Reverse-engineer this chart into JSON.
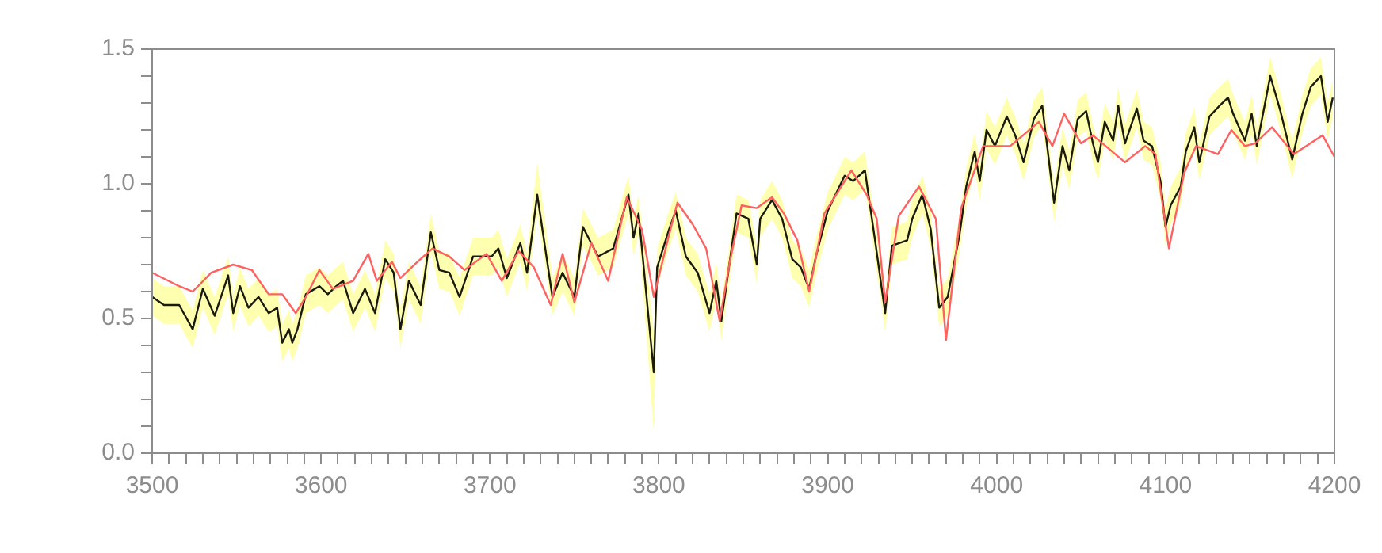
{
  "chart_data": {
    "type": "line",
    "marker": "none",
    "line_style": "solid",
    "xlim": [
      3500,
      4200
    ],
    "ylim": [
      0,
      1.5
    ],
    "xticks": [
      3500,
      {
        "value": 3510,
        "label": null
      },
      {
        "value": 3520,
        "label": null
      },
      {
        "value": 3530,
        "label": null
      },
      {
        "value": 3540,
        "label": null
      },
      {
        "value": 3550,
        "label": null
      },
      {
        "value": 3560,
        "label": null
      },
      {
        "value": 3570,
        "label": null
      },
      {
        "value": 3580,
        "label": null
      },
      {
        "value": 3590,
        "label": null
      },
      3600,
      {
        "value": 3610,
        "label": null
      },
      {
        "value": 3620,
        "label": null
      },
      {
        "value": 3630,
        "label": null
      },
      {
        "value": 3640,
        "label": null
      },
      {
        "value": 3650,
        "label": null
      },
      {
        "value": 3660,
        "label": null
      },
      {
        "value": 3670,
        "label": null
      },
      {
        "value": 3680,
        "label": null
      },
      {
        "value": 3690,
        "label": null
      },
      3700,
      {
        "value": 3710,
        "label": null
      },
      {
        "value": 3720,
        "label": null
      },
      {
        "value": 3730,
        "label": null
      },
      {
        "value": 3740,
        "label": null
      },
      {
        "value": 3750,
        "label": null
      },
      {
        "value": 3760,
        "label": null
      },
      {
        "value": 3770,
        "label": null
      },
      {
        "value": 3780,
        "label": null
      },
      {
        "value": 3790,
        "label": null
      },
      3800,
      {
        "value": 3810,
        "label": null
      },
      {
        "value": 3820,
        "label": null
      },
      {
        "value": 3830,
        "label": null
      },
      {
        "value": 3840,
        "label": null
      },
      {
        "value": 3850,
        "label": null
      },
      {
        "value": 3860,
        "label": null
      },
      {
        "value": 3870,
        "label": null
      },
      {
        "value": 3880,
        "label": null
      },
      {
        "value": 3890,
        "label": null
      },
      3900,
      {
        "value": 3910,
        "label": null
      },
      {
        "value": 3920,
        "label": null
      },
      {
        "value": 3930,
        "label": null
      },
      {
        "value": 3940,
        "label": null
      },
      {
        "value": 3950,
        "label": null
      },
      {
        "value": 3960,
        "label": null
      },
      {
        "value": 3970,
        "label": null
      },
      {
        "value": 3980,
        "label": null
      },
      {
        "value": 3990,
        "label": null
      },
      4000,
      {
        "value": 4010,
        "label": null
      },
      {
        "value": 4020,
        "label": null
      },
      {
        "value": 4030,
        "label": null
      },
      {
        "value": 4040,
        "label": null
      },
      {
        "value": 4050,
        "label": null
      },
      {
        "value": 4060,
        "label": null
      },
      {
        "value": 4070,
        "label": null
      },
      {
        "value": 4080,
        "label": null
      },
      {
        "value": 4090,
        "label": null
      },
      4100,
      {
        "value": 4110,
        "label": null
      },
      {
        "value": 4120,
        "label": null
      },
      {
        "value": 4130,
        "label": null
      },
      {
        "value": 4140,
        "label": null
      },
      {
        "value": 4150,
        "label": null
      },
      {
        "value": 4160,
        "label": null
      },
      {
        "value": 4170,
        "label": null
      },
      {
        "value": 4180,
        "label": null
      },
      {
        "value": 4190,
        "label": null
      },
      4200
    ],
    "yticks": [
      {
        "value": 0,
        "label": "0.0"
      },
      {
        "value": 0.1,
        "label": null
      },
      {
        "value": 0.2,
        "label": null
      },
      {
        "value": 0.3,
        "label": null
      },
      {
        "value": 0.4,
        "label": null
      },
      0.5,
      {
        "value": 0.6,
        "label": null
      },
      {
        "value": 0.7,
        "label": null
      },
      {
        "value": 0.8,
        "label": null
      },
      {
        "value": 0.9,
        "label": null
      },
      {
        "value": 1,
        "label": "1.0"
      },
      {
        "value": 1.1,
        "label": null
      },
      {
        "value": 1.2,
        "label": null
      },
      {
        "value": 1.3,
        "label": null
      },
      {
        "value": 1.4,
        "label": null
      },
      1.5
    ],
    "series": [
      {
        "color": "#ff6060",
        "x": [
          3500,
          3516,
          3524,
          3535,
          3548,
          3559,
          3569,
          3577,
          3585,
          3591,
          3599,
          3607,
          3619,
          3628,
          3633,
          3642,
          3647,
          3657,
          3666,
          3676,
          3685,
          3698,
          3707,
          3717,
          3726,
          3736,
          3743,
          3750,
          3760,
          3770,
          3781,
          3790,
          3797,
          3806,
          3811,
          3820,
          3828,
          3836,
          3842,
          3849,
          3858,
          3867,
          3874,
          3882,
          3889,
          3898,
          3914,
          3923,
          3929,
          3934,
          3942,
          3954,
          3964,
          3970,
          3979,
          3992,
          4008,
          4025,
          4033,
          4040,
          4050,
          4057,
          4076,
          4088,
          4094,
          4102,
          4111,
          4118,
          4131,
          4139,
          4147,
          4153,
          4163,
          4176,
          4193,
          4200
        ],
        "values": [
          0.67,
          0.62,
          0.6,
          0.67,
          0.7,
          0.68,
          0.59,
          0.59,
          0.52,
          0.58,
          0.68,
          0.61,
          0.64,
          0.74,
          0.64,
          0.71,
          0.65,
          0.71,
          0.76,
          0.73,
          0.68,
          0.74,
          0.64,
          0.75,
          0.69,
          0.55,
          0.74,
          0.56,
          0.78,
          0.64,
          0.95,
          0.83,
          0.58,
          0.81,
          0.93,
          0.85,
          0.76,
          0.49,
          0.71,
          0.92,
          0.91,
          0.95,
          0.89,
          0.79,
          0.6,
          0.89,
          1.05,
          0.96,
          0.87,
          0.56,
          0.88,
          0.99,
          0.87,
          0.42,
          0.91,
          1.14,
          1.14,
          1.23,
          1.14,
          1.26,
          1.15,
          1.18,
          1.08,
          1.14,
          1.11,
          0.76,
          1.04,
          1.14,
          1.11,
          1.2,
          1.14,
          1.15,
          1.21,
          1.11,
          1.18,
          1.1
        ]
      },
      {
        "color": "#1a1a10",
        "x": [
          3500,
          3507,
          3516,
          3524,
          3530,
          3537,
          3545,
          3548,
          3552,
          3557,
          3563,
          3569,
          3574,
          3577,
          3581,
          3583,
          3586,
          3591,
          3599,
          3604,
          3609,
          3613,
          3619,
          3626,
          3632,
          3638,
          3643,
          3647,
          3652,
          3659,
          3665,
          3670,
          3676,
          3682,
          3690,
          3701,
          3705,
          3710,
          3718,
          3722,
          3728,
          3737,
          3743,
          3750,
          3755,
          3764,
          3773,
          3782,
          3785,
          3788,
          3797,
          3799,
          3806,
          3810,
          3816,
          3823,
          3830,
          3834,
          3837,
          3846,
          3853,
          3858,
          3860,
          3867,
          3873,
          3879,
          3884,
          3889,
          3893,
          3900,
          3910,
          3915,
          3922,
          3928,
          3934,
          3938,
          3947,
          3950,
          3956,
          3961,
          3966,
          3971,
          3978,
          3982,
          3987,
          3990,
          3994,
          3999,
          4006,
          4011,
          4016,
          4022,
          4027,
          4034,
          4039,
          4043,
          4048,
          4053,
          4057,
          4060,
          4064,
          4069,
          4072,
          4076,
          4083,
          4087,
          4092,
          4097,
          4100,
          4103,
          4109,
          4112,
          4117,
          4120,
          4126,
          4132,
          4137,
          4140,
          4147,
          4151,
          4154,
          4162,
          4168,
          4175,
          4181,
          4186,
          4192,
          4196,
          4199
        ],
        "values": [
          0.58,
          0.55,
          0.55,
          0.46,
          0.61,
          0.51,
          0.66,
          0.52,
          0.62,
          0.54,
          0.58,
          0.52,
          0.54,
          0.41,
          0.46,
          0.41,
          0.46,
          0.59,
          0.62,
          0.59,
          0.62,
          0.64,
          0.52,
          0.61,
          0.52,
          0.72,
          0.67,
          0.46,
          0.64,
          0.55,
          0.82,
          0.68,
          0.67,
          0.58,
          0.73,
          0.73,
          0.76,
          0.65,
          0.78,
          0.67,
          0.96,
          0.58,
          0.67,
          0.58,
          0.84,
          0.73,
          0.76,
          0.96,
          0.8,
          0.89,
          0.3,
          0.69,
          0.83,
          0.9,
          0.73,
          0.67,
          0.52,
          0.64,
          0.49,
          0.89,
          0.87,
          0.7,
          0.87,
          0.94,
          0.87,
          0.72,
          0.69,
          0.61,
          0.73,
          0.9,
          1.03,
          1.01,
          1.05,
          0.79,
          0.52,
          0.77,
          0.79,
          0.87,
          0.96,
          0.83,
          0.54,
          0.58,
          0.81,
          0.99,
          1.12,
          1.01,
          1.2,
          1.14,
          1.25,
          1.18,
          1.08,
          1.24,
          1.29,
          0.93,
          1.14,
          1.05,
          1.24,
          1.27,
          1.15,
          1.08,
          1.23,
          1.16,
          1.29,
          1.15,
          1.28,
          1.16,
          1.14,
          1.01,
          0.84,
          0.92,
          0.99,
          1.12,
          1.21,
          1.08,
          1.25,
          1.29,
          1.32,
          1.26,
          1.16,
          1.26,
          1.14,
          1.4,
          1.27,
          1.09,
          1.26,
          1.36,
          1.4,
          1.23,
          1.32
        ],
        "lower": [
          0.51,
          0.48,
          0.48,
          0.39,
          0.54,
          0.44,
          0.59,
          0.45,
          0.55,
          0.47,
          0.51,
          0.45,
          0.47,
          0.34,
          0.39,
          0.34,
          0.39,
          0.52,
          0.55,
          0.52,
          0.55,
          0.57,
          0.45,
          0.54,
          0.45,
          0.65,
          0.6,
          0.39,
          0.57,
          0.48,
          0.75,
          0.61,
          0.6,
          0.51,
          0.66,
          0.66,
          0.69,
          0.58,
          0.71,
          0.6,
          0.89,
          0.51,
          0.6,
          0.51,
          0.77,
          0.66,
          0.69,
          0.89,
          0.73,
          0.82,
          0.08,
          0.62,
          0.76,
          0.83,
          0.66,
          0.6,
          0.45,
          0.57,
          0.42,
          0.82,
          0.8,
          0.63,
          0.8,
          0.87,
          0.8,
          0.65,
          0.62,
          0.54,
          0.66,
          0.83,
          0.96,
          0.94,
          0.98,
          0.72,
          0.45,
          0.7,
          0.72,
          0.8,
          0.89,
          0.76,
          0.47,
          0.51,
          0.74,
          0.92,
          1.05,
          0.94,
          1.13,
          1.07,
          1.18,
          1.11,
          1.01,
          1.17,
          1.22,
          0.86,
          1.07,
          0.98,
          1.17,
          1.2,
          1.08,
          1.01,
          1.16,
          1.09,
          1.22,
          1.08,
          1.21,
          1.09,
          1.07,
          0.94,
          0.77,
          0.85,
          0.92,
          1.05,
          1.14,
          1.01,
          1.18,
          1.22,
          1.25,
          1.19,
          1.09,
          1.19,
          1.07,
          1.33,
          1.2,
          1.02,
          1.19,
          1.29,
          1.33,
          1.16,
          1.25
        ],
        "upper": [
          0.65,
          0.62,
          0.62,
          0.53,
          0.68,
          0.58,
          0.73,
          0.59,
          0.69,
          0.61,
          0.65,
          0.59,
          0.61,
          0.48,
          0.53,
          0.48,
          0.53,
          0.66,
          0.69,
          0.66,
          0.69,
          0.71,
          0.59,
          0.68,
          0.59,
          0.79,
          0.74,
          0.53,
          0.71,
          0.62,
          0.89,
          0.75,
          0.74,
          0.65,
          0.8,
          0.8,
          0.83,
          0.72,
          0.85,
          0.74,
          1.08,
          0.65,
          0.74,
          0.65,
          0.91,
          0.8,
          0.83,
          1.03,
          0.87,
          0.96,
          0.45,
          0.76,
          0.9,
          0.97,
          0.8,
          0.74,
          0.59,
          0.71,
          0.56,
          0.96,
          0.94,
          0.77,
          0.94,
          1.01,
          0.94,
          0.79,
          0.76,
          0.68,
          0.8,
          0.97,
          1.1,
          1.08,
          1.12,
          0.86,
          0.59,
          0.84,
          0.86,
          0.94,
          1.03,
          0.9,
          0.61,
          0.65,
          0.88,
          1.06,
          1.19,
          1.08,
          1.27,
          1.21,
          1.32,
          1.25,
          1.15,
          1.31,
          1.36,
          1,
          1.21,
          1.12,
          1.31,
          1.34,
          1.22,
          1.15,
          1.3,
          1.23,
          1.36,
          1.22,
          1.35,
          1.23,
          1.21,
          1.08,
          0.91,
          0.99,
          1.06,
          1.19,
          1.28,
          1.15,
          1.32,
          1.36,
          1.39,
          1.33,
          1.23,
          1.33,
          1.21,
          1.47,
          1.34,
          1.16,
          1.33,
          1.43,
          1.47,
          1.3,
          1.39
        ]
      }
    ]
  }
}
